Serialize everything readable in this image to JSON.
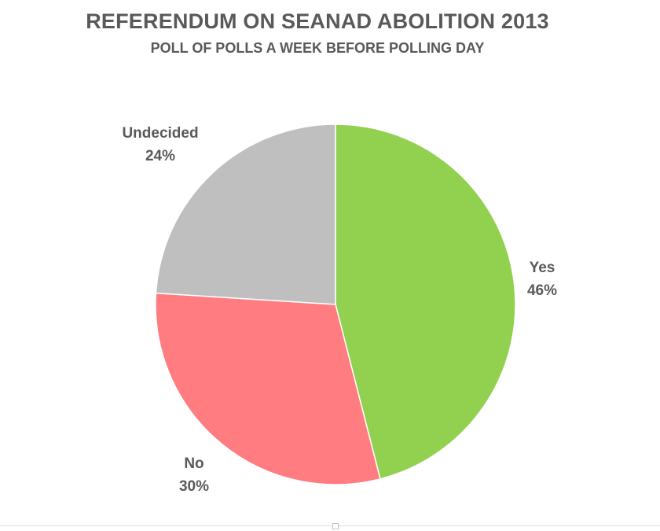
{
  "chart_data": {
    "type": "pie",
    "title": "REFERENDUM ON SEANAD ABOLITION 2013",
    "subtitle": "POLL OF POLLS A WEEK BEFORE POLLING DAY",
    "slices": [
      {
        "label": "Yes",
        "value": 46,
        "value_label": "46%",
        "color": "#92d050"
      },
      {
        "label": "No",
        "value": 30,
        "value_label": "30%",
        "color": "#ff7c80"
      },
      {
        "label": "Undecided",
        "value": 24,
        "value_label": "24%",
        "color": "#bfbfbf"
      }
    ]
  }
}
